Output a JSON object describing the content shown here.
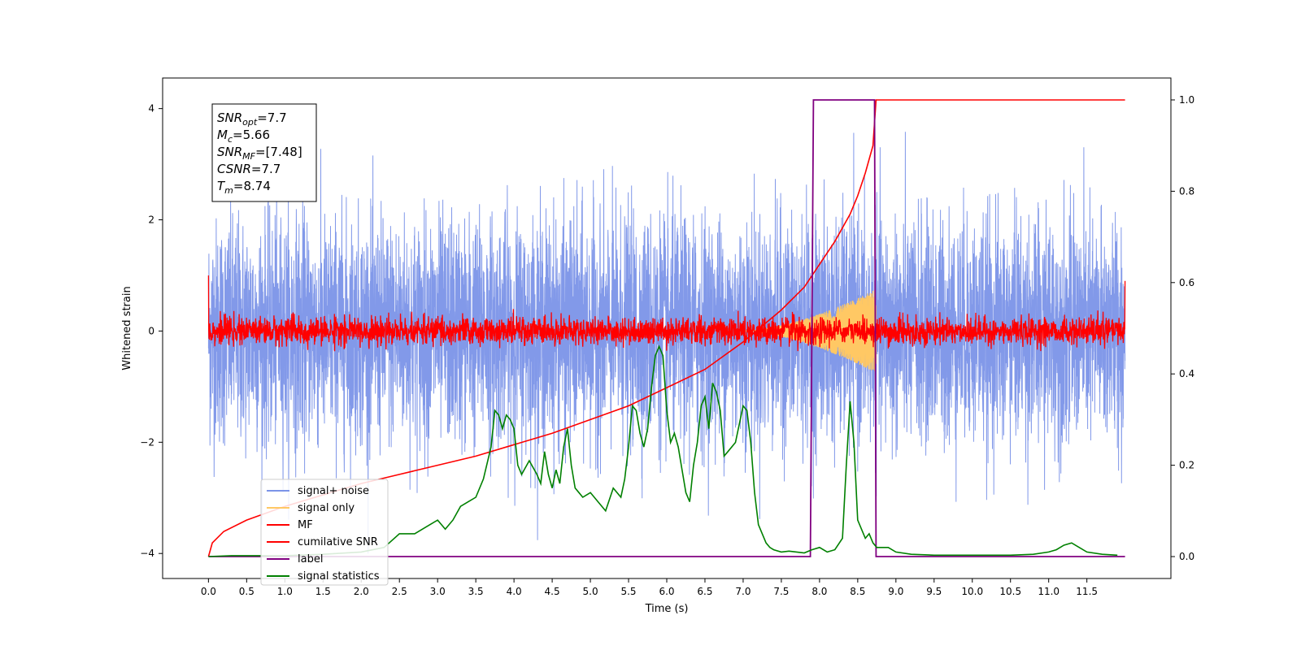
{
  "chart_data": {
    "type": "line",
    "xlabel": "Time (s)",
    "ylabel": "Whitened strain",
    "xlim": [
      -0.6,
      12.6
    ],
    "ylim": [
      -4.45,
      4.55
    ],
    "y2lim": [
      -0.048,
      1.048
    ],
    "xticks": [
      0.0,
      0.5,
      1.0,
      1.5,
      2.0,
      2.5,
      3.0,
      3.5,
      4.0,
      4.5,
      5.0,
      5.5,
      6.0,
      6.5,
      7.0,
      7.5,
      8.0,
      8.5,
      9.0,
      9.5,
      10.0,
      10.5,
      11.0,
      11.5
    ],
    "xtick_labels": [
      "0.0",
      "0.5",
      "1.0",
      "1.5",
      "2.0",
      "2.5",
      "3.0",
      "3.5",
      "4.0",
      "4.5",
      "5.0",
      "5.5",
      "6.0",
      "6.5",
      "7.0",
      "7.5",
      "8.0",
      "8.5",
      "9.0",
      "9.5",
      "10.0",
      "10.5",
      "11.0",
      "11.5"
    ],
    "yticks": [
      -4,
      -2,
      0,
      2,
      4
    ],
    "ytick_labels": [
      "−4",
      "−2",
      "0",
      "2",
      "4"
    ],
    "y2ticks": [
      0.0,
      0.2,
      0.4,
      0.6,
      0.8,
      1.0
    ],
    "y2tick_labels": [
      "0.0",
      "0.2",
      "0.4",
      "0.6",
      "0.8",
      "1.0"
    ],
    "grid": false,
    "legend_position": "lower-left",
    "annotation_box": {
      "position": "top-left",
      "lines": [
        {
          "sym": "SNR",
          "sub": "opt",
          "val": "=7.7"
        },
        {
          "sym": "M",
          "sub": "c",
          "val": "=5.66"
        },
        {
          "sym": "SNR",
          "sub": "MF",
          "val": "=[7.48]"
        },
        {
          "sym": "CSNR",
          "sub": "",
          "val": "=7.7"
        },
        {
          "sym": "T",
          "sub": "m",
          "val": "=8.74"
        }
      ]
    },
    "series": [
      {
        "name": "signal+ noise",
        "axis": "left",
        "color": "#7b94e8",
        "kind": "noise",
        "description_values": {
          "x_range": [
            0.0,
            12.0
          ],
          "mean": 0.0,
          "std": 1.0,
          "max": 4.2,
          "min": -4.0
        }
      },
      {
        "name": "signal only",
        "axis": "left",
        "color": "#ffc864",
        "kind": "chirp",
        "description_values": {
          "x_range": [
            7.0,
            8.74
          ],
          "amplitude_end": 0.75
        }
      },
      {
        "name": "MF",
        "axis": "left",
        "color": "#ff0000",
        "kind": "mf",
        "description_values": {
          "x_range": [
            0.0,
            12.0
          ],
          "std": 0.12,
          "start": 1.0,
          "end": 0.9
        }
      },
      {
        "name": "cumilative SNR",
        "axis": "right",
        "color": "#ff0000",
        "x": [
          0.0,
          0.05,
          0.2,
          0.5,
          1.0,
          1.5,
          2.0,
          2.5,
          3.0,
          3.5,
          4.0,
          4.5,
          5.0,
          5.5,
          6.0,
          6.5,
          7.0,
          7.5,
          7.8,
          8.0,
          8.2,
          8.4,
          8.5,
          8.6,
          8.7,
          8.74,
          9.0,
          10.0,
          11.0,
          12.0
        ],
        "y": [
          0.0,
          0.03,
          0.055,
          0.08,
          0.11,
          0.135,
          0.16,
          0.18,
          0.2,
          0.22,
          0.245,
          0.27,
          0.3,
          0.33,
          0.37,
          0.41,
          0.47,
          0.54,
          0.59,
          0.64,
          0.69,
          0.75,
          0.79,
          0.84,
          0.9,
          1.0,
          1.0,
          1.0,
          1.0,
          1.0
        ]
      },
      {
        "name": "label",
        "axis": "right",
        "color": "#800080",
        "x": [
          0.0,
          7.88,
          7.92,
          8.72,
          8.74,
          12.0
        ],
        "y": [
          0.0,
          0.0,
          1.0,
          1.0,
          0.0,
          0.0
        ]
      },
      {
        "name": "signal statistics",
        "axis": "right",
        "color": "#008000",
        "x": [
          0.0,
          0.3,
          0.6,
          1.0,
          1.5,
          2.0,
          2.3,
          2.5,
          2.7,
          2.8,
          2.9,
          3.0,
          3.1,
          3.2,
          3.3,
          3.4,
          3.5,
          3.6,
          3.7,
          3.75,
          3.8,
          3.85,
          3.9,
          3.95,
          4.0,
          4.05,
          4.1,
          4.2,
          4.3,
          4.35,
          4.4,
          4.45,
          4.5,
          4.55,
          4.6,
          4.65,
          4.7,
          4.75,
          4.8,
          4.85,
          4.9,
          5.0,
          5.1,
          5.2,
          5.3,
          5.4,
          5.45,
          5.5,
          5.55,
          5.6,
          5.65,
          5.7,
          5.75,
          5.8,
          5.85,
          5.9,
          5.95,
          6.0,
          6.05,
          6.1,
          6.15,
          6.2,
          6.25,
          6.3,
          6.35,
          6.4,
          6.45,
          6.5,
          6.55,
          6.6,
          6.65,
          6.7,
          6.75,
          6.8,
          6.9,
          7.0,
          7.05,
          7.1,
          7.15,
          7.2,
          7.25,
          7.3,
          7.35,
          7.4,
          7.5,
          7.6,
          7.7,
          7.8,
          7.9,
          8.0,
          8.1,
          8.2,
          8.3,
          8.35,
          8.4,
          8.45,
          8.5,
          8.55,
          8.6,
          8.65,
          8.7,
          8.75,
          8.8,
          8.9,
          9.0,
          9.2,
          9.5,
          10.0,
          10.5,
          10.8,
          11.0,
          11.1,
          11.2,
          11.3,
          11.4,
          11.5,
          11.7,
          11.9
        ],
        "y": [
          0.0,
          0.002,
          0.002,
          0.002,
          0.005,
          0.01,
          0.02,
          0.05,
          0.05,
          0.06,
          0.07,
          0.08,
          0.06,
          0.08,
          0.11,
          0.12,
          0.13,
          0.17,
          0.24,
          0.32,
          0.31,
          0.28,
          0.31,
          0.3,
          0.28,
          0.2,
          0.18,
          0.21,
          0.18,
          0.16,
          0.23,
          0.18,
          0.15,
          0.19,
          0.16,
          0.24,
          0.28,
          0.2,
          0.15,
          0.14,
          0.13,
          0.14,
          0.12,
          0.1,
          0.15,
          0.13,
          0.17,
          0.24,
          0.33,
          0.32,
          0.27,
          0.24,
          0.28,
          0.37,
          0.44,
          0.46,
          0.44,
          0.32,
          0.25,
          0.27,
          0.24,
          0.19,
          0.14,
          0.12,
          0.2,
          0.25,
          0.33,
          0.35,
          0.28,
          0.38,
          0.36,
          0.32,
          0.22,
          0.23,
          0.25,
          0.33,
          0.32,
          0.25,
          0.14,
          0.07,
          0.05,
          0.03,
          0.02,
          0.015,
          0.01,
          0.012,
          0.01,
          0.008,
          0.015,
          0.02,
          0.01,
          0.015,
          0.04,
          0.2,
          0.34,
          0.25,
          0.08,
          0.06,
          0.04,
          0.05,
          0.03,
          0.02,
          0.02,
          0.02,
          0.01,
          0.005,
          0.003,
          0.003,
          0.003,
          0.005,
          0.01,
          0.015,
          0.025,
          0.03,
          0.02,
          0.01,
          0.005,
          0.003
        ]
      }
    ]
  }
}
